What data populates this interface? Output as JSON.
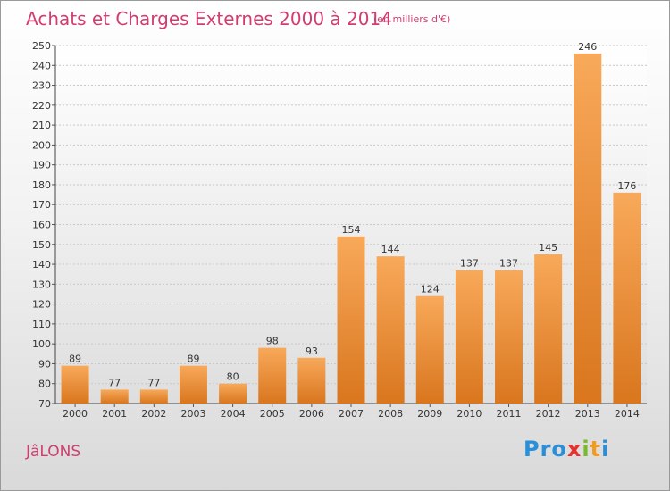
{
  "chart_data": {
    "type": "bar",
    "title": "Achats et Charges Externes 2000 à 2014",
    "subtitle": "(en milliers d'€)",
    "categories": [
      "2000",
      "2001",
      "2002",
      "2003",
      "2004",
      "2005",
      "2006",
      "2007",
      "2008",
      "2009",
      "2010",
      "2011",
      "2012",
      "2013",
      "2014"
    ],
    "values": [
      89,
      77,
      77,
      89,
      80,
      98,
      93,
      154,
      144,
      124,
      137,
      137,
      145,
      246,
      176
    ],
    "ylim": [
      70,
      250
    ],
    "yticks": [
      70,
      80,
      90,
      100,
      110,
      120,
      130,
      140,
      150,
      160,
      170,
      180,
      190,
      200,
      210,
      220,
      230,
      240,
      250
    ],
    "grid": true,
    "bar_color": "#f0923a"
  },
  "footer": {
    "commune": "JâLONS",
    "logo": [
      "Pro",
      "x",
      "i",
      "t",
      "i"
    ]
  }
}
